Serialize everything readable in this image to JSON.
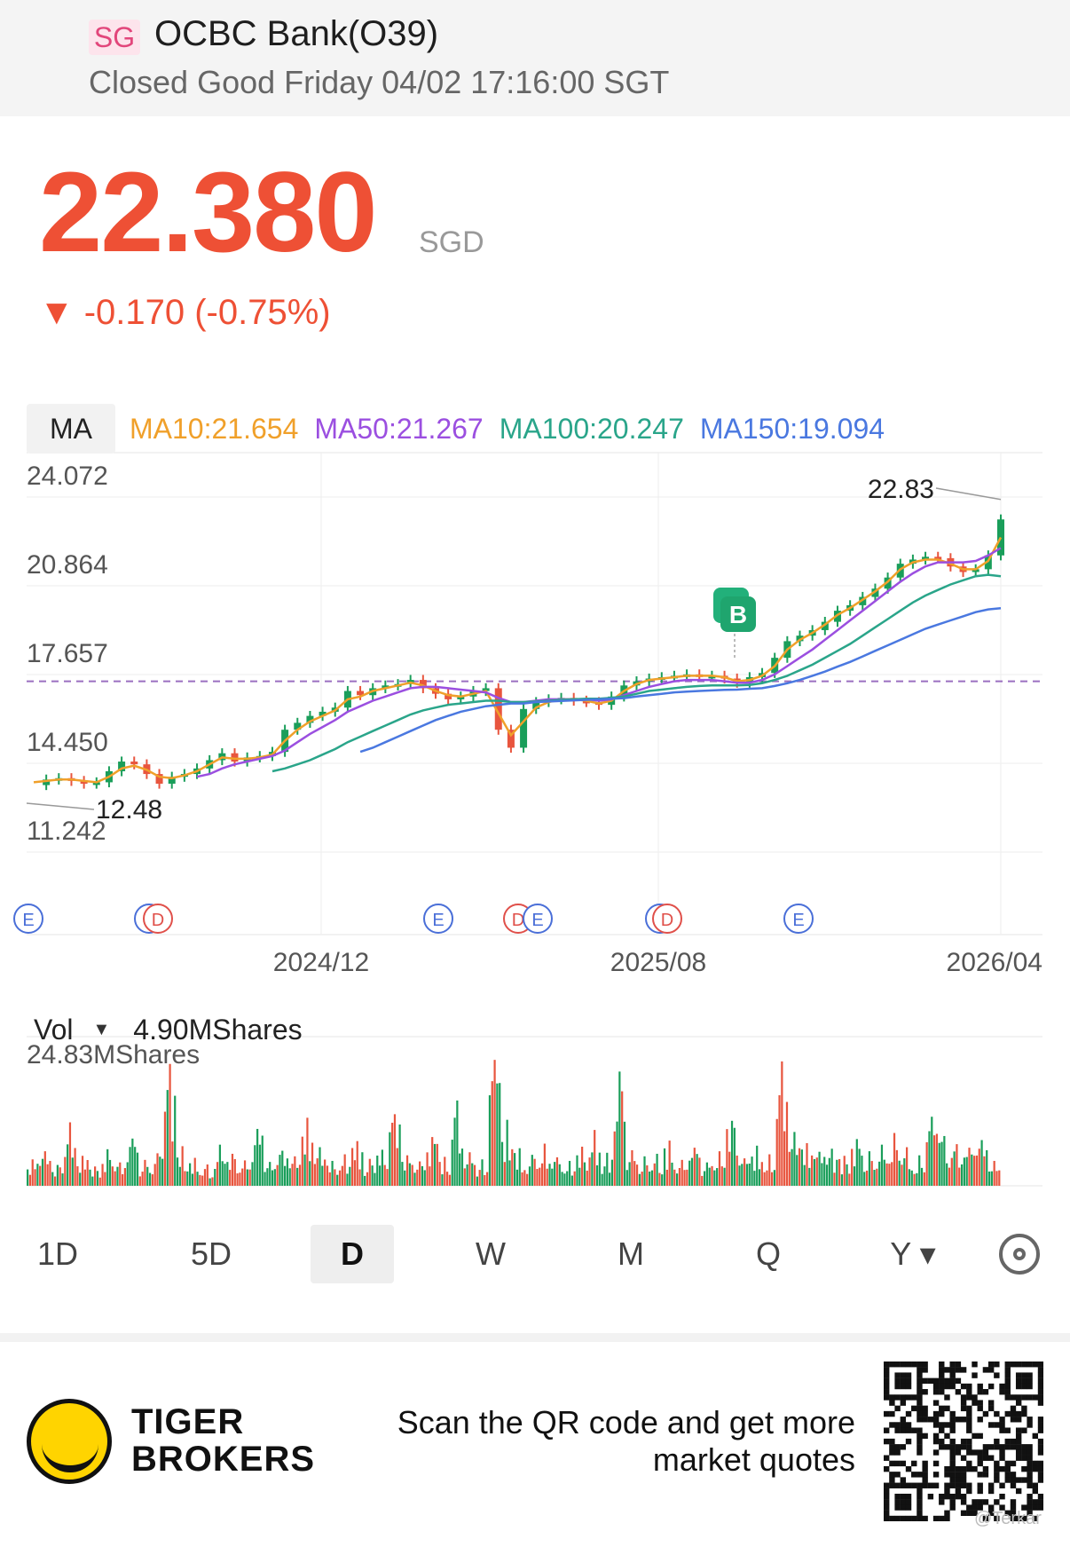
{
  "header": {
    "market_badge": "SG",
    "stock_name": "OCBC Bank(O39)",
    "status": "Closed Good Friday 04/02 17:16:00 SGT"
  },
  "quote": {
    "price": "22.380",
    "currency": "SGD",
    "change": "▼ -0.170 (-0.75%)"
  },
  "indicators": {
    "button": "MA",
    "items": [
      {
        "label": "MA10:21.654",
        "color": "#f0a02a"
      },
      {
        "label": "MA50:21.267",
        "color": "#9b4fe0"
      },
      {
        "label": "MA100:20.247",
        "color": "#2aa58a"
      },
      {
        "label": "MA150:19.094",
        "color": "#4a78e0"
      }
    ]
  },
  "chart_data": {
    "type": "line",
    "title": "",
    "xlabel": "",
    "ylabel": "",
    "y_ticks": [
      "24.072",
      "20.864",
      "17.657",
      "14.450",
      "11.242"
    ],
    "y_tick_values": [
      24.072,
      20.864,
      17.657,
      14.45,
      11.242
    ],
    "ylim": [
      11.242,
      24.072
    ],
    "x_ticks": [
      "2024/12",
      "2025/08",
      "2026/04"
    ],
    "grid": true,
    "reference_line": 16.45,
    "annotations": {
      "high_label": "22.83",
      "low_label": "12.48",
      "buy_marker": "B",
      "event_markers": [
        "E",
        "E",
        "D",
        "E",
        "D",
        "E",
        "E",
        "D",
        "E",
        "E"
      ]
    },
    "series": [
      {
        "key": "price",
        "color": "#1a9e5a",
        "values": [
          12.7,
          12.9,
          12.95,
          12.85,
          12.75,
          12.8,
          13.2,
          13.55,
          13.45,
          13.1,
          12.75,
          13.0,
          13.1,
          13.3,
          13.6,
          13.85,
          13.55,
          13.7,
          13.75,
          13.9,
          14.7,
          14.95,
          15.2,
          15.35,
          15.5,
          16.1,
          15.95,
          16.2,
          16.3,
          16.35,
          16.5,
          16.2,
          16.0,
          15.8,
          15.9,
          16.1,
          16.2,
          14.7,
          14.05,
          15.45,
          15.7,
          15.8,
          15.85,
          15.75,
          15.7,
          15.6,
          15.9,
          16.3,
          16.45,
          16.55,
          16.6,
          16.65,
          16.7,
          16.65,
          16.65,
          16.55,
          16.4,
          16.6,
          16.75,
          17.3,
          17.9,
          18.1,
          18.3,
          18.6,
          19.0,
          19.2,
          19.5,
          19.8,
          20.2,
          20.7,
          20.85,
          20.95,
          20.9,
          20.6,
          20.4,
          20.5,
          21.0,
          22.3
        ]
      },
      {
        "key": "MA10",
        "color": "#f0a02a",
        "values": [
          12.8,
          12.85,
          12.9,
          12.9,
          12.85,
          12.8,
          13.0,
          13.3,
          13.4,
          13.25,
          13.0,
          12.95,
          13.05,
          13.2,
          13.45,
          13.7,
          13.65,
          13.65,
          13.7,
          13.8,
          14.3,
          14.7,
          15.0,
          15.2,
          15.4,
          15.8,
          15.9,
          16.1,
          16.2,
          16.3,
          16.4,
          16.3,
          16.1,
          15.95,
          15.9,
          16.0,
          16.1,
          15.3,
          14.5,
          15.0,
          15.5,
          15.7,
          15.8,
          15.8,
          15.75,
          15.65,
          15.75,
          16.1,
          16.35,
          16.5,
          16.55,
          16.6,
          16.65,
          16.65,
          16.65,
          16.6,
          16.45,
          16.5,
          16.65,
          17.0,
          17.6,
          17.95,
          18.2,
          18.5,
          18.85,
          19.1,
          19.4,
          19.7,
          20.05,
          20.5,
          20.75,
          20.85,
          20.85,
          20.7,
          20.5,
          20.5,
          20.8,
          21.65
        ]
      },
      {
        "key": "MA50",
        "color": "#9b4fe0",
        "values": [
          null,
          null,
          null,
          null,
          null,
          null,
          null,
          null,
          null,
          null,
          null,
          null,
          null,
          13.0,
          13.1,
          13.3,
          13.45,
          13.55,
          13.65,
          13.75,
          13.95,
          14.25,
          14.55,
          14.8,
          15.05,
          15.35,
          15.55,
          15.75,
          15.9,
          16.05,
          16.2,
          16.25,
          16.25,
          16.2,
          16.15,
          16.1,
          16.05,
          15.85,
          15.7,
          15.7,
          15.75,
          15.8,
          15.8,
          15.8,
          15.8,
          15.75,
          15.8,
          15.95,
          16.1,
          16.25,
          16.35,
          16.45,
          16.5,
          16.5,
          16.5,
          16.45,
          16.4,
          16.4,
          16.5,
          16.7,
          17.0,
          17.3,
          17.6,
          17.95,
          18.3,
          18.65,
          19.0,
          19.35,
          19.7,
          20.05,
          20.35,
          20.6,
          20.75,
          20.75,
          20.75,
          20.8,
          21.0,
          21.27
        ]
      },
      {
        "key": "MA100",
        "color": "#2aa58a",
        "values": [
          null,
          null,
          null,
          null,
          null,
          null,
          null,
          null,
          null,
          null,
          null,
          null,
          null,
          null,
          null,
          null,
          null,
          null,
          null,
          13.2,
          13.3,
          13.45,
          13.6,
          13.8,
          14.0,
          14.25,
          14.45,
          14.65,
          14.85,
          15.05,
          15.25,
          15.4,
          15.5,
          15.6,
          15.65,
          15.7,
          15.75,
          15.75,
          15.7,
          15.7,
          15.72,
          15.75,
          15.78,
          15.8,
          15.82,
          15.82,
          15.85,
          15.9,
          16.0,
          16.1,
          16.15,
          16.2,
          16.25,
          16.28,
          16.3,
          16.3,
          16.3,
          16.32,
          16.38,
          16.5,
          16.65,
          16.85,
          17.05,
          17.3,
          17.55,
          17.8,
          18.1,
          18.4,
          18.7,
          19.0,
          19.3,
          19.55,
          19.75,
          19.95,
          20.1,
          20.25,
          20.3,
          20.25
        ]
      },
      {
        "key": "MA150",
        "color": "#4a78e0",
        "values": [
          null,
          null,
          null,
          null,
          null,
          null,
          null,
          null,
          null,
          null,
          null,
          null,
          null,
          null,
          null,
          null,
          null,
          null,
          null,
          null,
          null,
          null,
          null,
          null,
          null,
          null,
          13.9,
          14.05,
          14.25,
          14.45,
          14.65,
          14.85,
          15.05,
          15.2,
          15.35,
          15.45,
          15.55,
          15.6,
          15.65,
          15.65,
          15.7,
          15.72,
          15.74,
          15.76,
          15.78,
          15.8,
          15.82,
          15.84,
          15.9,
          15.95,
          16.0,
          16.05,
          16.08,
          16.1,
          16.12,
          16.14,
          16.15,
          16.18,
          16.2,
          16.28,
          16.38,
          16.5,
          16.65,
          16.8,
          16.98,
          17.15,
          17.35,
          17.55,
          17.75,
          17.95,
          18.15,
          18.35,
          18.5,
          18.65,
          18.8,
          18.95,
          19.05,
          19.09
        ]
      }
    ],
    "volume": {
      "label": "Vol",
      "current": "4.90MShares",
      "max_label": "24.83MShares",
      "max": 24.83,
      "values": [
        5.2,
        6.8,
        4.1,
        12.5,
        5.9,
        3.8,
        7.2,
        4.6,
        9.3,
        5.1,
        6.4,
        24.0,
        7.8,
        5.5,
        4.2,
        8.1,
        6.3,
        5.0,
        11.2,
        4.7,
        6.9,
        5.8,
        13.4,
        7.6,
        4.9,
        6.2,
        8.8,
        5.3,
        7.1,
        14.1,
        6.0,
        4.8,
        9.6,
        5.7,
        16.8,
        6.6,
        5.2,
        24.8,
        13.0,
        7.4,
        6.1,
        8.3,
        5.6,
        4.9,
        7.7,
        11.0,
        6.5,
        22.5,
        7.0,
        5.8,
        6.3,
        8.9,
        5.1,
        7.5,
        4.6,
        6.8,
        12.8,
        5.4,
        7.9,
        6.2,
        24.5,
        10.6,
        8.4,
        6.7,
        7.3,
        5.9,
        9.2,
        6.8,
        8.1,
        10.4,
        7.6,
        6.0,
        13.6,
        9.8,
        8.2,
        7.5,
        9.0,
        4.9
      ]
    }
  },
  "periods": [
    "1D",
    "5D",
    "D",
    "W",
    "M",
    "Q",
    "Y ▾"
  ],
  "active_period": "D",
  "footer": {
    "brand_line1": "TIGER",
    "brand_line2": "BROKERS",
    "scan_line1": "Scan the QR code and get more",
    "scan_line2": "market quotes",
    "watermark": "@Terkar"
  }
}
